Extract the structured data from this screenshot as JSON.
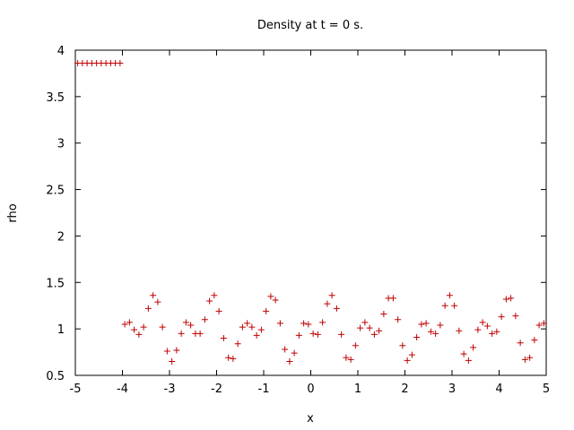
{
  "chart_data": {
    "type": "scatter",
    "title": "Density at t = 0 s.",
    "xlabel": "x",
    "ylabel": "rho",
    "xlim": [
      -5,
      5
    ],
    "ylim": [
      0.5,
      4
    ],
    "xticks": [
      "-5",
      "-4",
      "-3",
      "-2",
      "-1",
      "0",
      "1",
      "2",
      "3",
      "4",
      "5"
    ],
    "yticks": [
      "0.5",
      "1",
      "1.5",
      "2",
      "2.5",
      "3",
      "3.5",
      "4"
    ],
    "grid": false,
    "legend": "none",
    "marker": "+",
    "color": "#c00000",
    "series": [
      {
        "x": [
          -4.95,
          -4.85,
          -4.75,
          -4.65,
          -4.55,
          -4.45,
          -4.35,
          -4.25,
          -4.15,
          -4.05,
          -3.95,
          -3.85,
          -3.75,
          -3.65,
          -3.55,
          -3.45,
          -3.35,
          -3.25,
          -3.15,
          -3.05,
          -2.95,
          -2.85,
          -2.75,
          -2.65,
          -2.55,
          -2.45,
          -2.35,
          -2.25,
          -2.15,
          -2.05,
          -1.95,
          -1.85,
          -1.75,
          -1.65,
          -1.55,
          -1.45,
          -1.35,
          -1.25,
          -1.15,
          -1.05,
          -0.95,
          -0.85,
          -0.75,
          -0.65,
          -0.55,
          -0.45,
          -0.35,
          -0.25,
          -0.15,
          -0.05,
          0.05,
          0.15,
          0.25,
          0.35,
          0.45,
          0.55,
          0.65,
          0.75,
          0.85,
          0.95,
          1.05,
          1.15,
          1.25,
          1.35,
          1.45,
          1.55,
          1.65,
          1.75,
          1.85,
          1.95,
          2.05,
          2.15,
          2.25,
          2.35,
          2.45,
          2.55,
          2.65,
          2.75,
          2.85,
          2.95,
          3.05,
          3.15,
          3.25,
          3.35,
          3.45,
          3.55,
          3.65,
          3.75,
          3.85,
          3.95,
          4.05,
          4.15,
          4.25,
          4.35,
          4.45,
          4.55,
          4.65,
          4.75,
          4.85,
          4.95
        ],
        "y": [
          3.86,
          3.86,
          3.86,
          3.86,
          3.86,
          3.86,
          3.86,
          3.86,
          3.86,
          3.86,
          1.05,
          1.07,
          0.99,
          0.94,
          1.02,
          1.22,
          1.36,
          1.29,
          1.02,
          0.76,
          0.65,
          0.77,
          0.95,
          1.07,
          1.04,
          0.95,
          0.95,
          1.1,
          1.3,
          1.36,
          1.19,
          0.9,
          0.69,
          0.68,
          0.84,
          1.02,
          1.06,
          1.02,
          0.93,
          0.99,
          1.19,
          1.35,
          1.31,
          1.06,
          0.78,
          0.65,
          0.74,
          0.93,
          1.06,
          1.05,
          0.95,
          0.94,
          1.07,
          1.27,
          1.36,
          1.22,
          0.94,
          0.69,
          0.67,
          0.82,
          1.01,
          1.07,
          1.01,
          0.94,
          0.98,
          1.16,
          1.33,
          1.33,
          1.1,
          0.82,
          0.66,
          0.72,
          0.91,
          1.05,
          1.06,
          0.97,
          0.95,
          1.04,
          1.25,
          1.36,
          1.25,
          0.98,
          0.73,
          0.66,
          0.8,
          0.99,
          1.07,
          1.03,
          0.95,
          0.97,
          1.13,
          1.32,
          1.33,
          1.14,
          0.85,
          0.67,
          0.69,
          0.88,
          1.04,
          1.06
        ]
      }
    ]
  }
}
